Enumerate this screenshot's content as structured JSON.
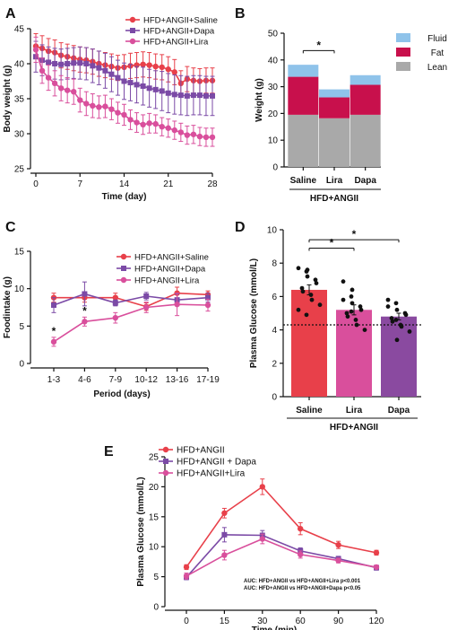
{
  "colors": {
    "saline": "#e8404a",
    "dapa": "#7b4aa6",
    "lira": "#d94f9c",
    "fluid": "#8fc3ea",
    "fat": "#c8104c",
    "lean": "#a9a9a9",
    "plasma_saline": "#e8404a",
    "plasma_lira": "#d94f9c",
    "plasma_dapa": "#8a4aa0"
  },
  "chart_data": [
    {
      "panel": "A",
      "type": "line",
      "xlabel": "Time (day)",
      "ylabel": "Body weight (g)",
      "xlim": [
        0,
        28
      ],
      "ylim": [
        25,
        45
      ],
      "xticks": [
        "0",
        "7",
        "14",
        "21",
        "28"
      ],
      "yticks": [
        "25",
        "30",
        "35",
        "40",
        "45"
      ],
      "legend": "top-right",
      "x": [
        0,
        1,
        2,
        3,
        4,
        5,
        6,
        7,
        8,
        9,
        10,
        11,
        12,
        13,
        14,
        15,
        16,
        17,
        18,
        19,
        20,
        21,
        22,
        23,
        24,
        25,
        26,
        27,
        28
      ],
      "series": [
        {
          "name": "HFD+ANGII+Saline",
          "color_key": "saline",
          "values": [
            42.5,
            42.2,
            41.8,
            41.6,
            41.2,
            41.0,
            40.8,
            40.6,
            40.5,
            40.3,
            40.0,
            39.8,
            39.6,
            39.4,
            39.5,
            39.7,
            39.8,
            39.9,
            39.8,
            39.6,
            39.5,
            39.2,
            38.8,
            37.2,
            37.8,
            37.6,
            37.5,
            37.6,
            37.6
          ],
          "errors": [
            1.8,
            1.8,
            1.8,
            1.8,
            1.8,
            1.8,
            1.8,
            1.8,
            1.8,
            1.8,
            1.8,
            1.8,
            1.8,
            1.8,
            1.8,
            1.8,
            1.8,
            1.8,
            1.8,
            1.8,
            1.8,
            1.8,
            1.8,
            1.8,
            1.8,
            1.8,
            1.8,
            1.8,
            1.8
          ]
        },
        {
          "name": "HFD+ANGII+Dapa",
          "color_key": "dapa",
          "values": [
            41.0,
            40.5,
            40.2,
            40.0,
            39.9,
            40.0,
            40.1,
            40.1,
            40.0,
            39.7,
            39.4,
            39.0,
            38.5,
            38.0,
            37.5,
            37.3,
            37.0,
            36.8,
            36.5,
            36.3,
            36.1,
            35.8,
            35.6,
            35.5,
            35.4,
            35.5,
            35.5,
            35.4,
            35.4
          ],
          "errors": [
            2.2,
            2.2,
            2.2,
            2.2,
            2.2,
            2.2,
            2.2,
            2.3,
            2.3,
            2.4,
            2.4,
            2.5,
            2.5,
            2.5,
            2.6,
            2.6,
            2.6,
            2.7,
            2.7,
            2.7,
            2.8,
            2.8,
            2.8,
            2.8,
            2.8,
            2.8,
            2.8,
            2.8,
            2.8
          ]
        },
        {
          "name": "HFD+ANGII+Lira",
          "color_key": "lira",
          "values": [
            42.0,
            39.0,
            38.0,
            37.2,
            36.5,
            36.2,
            36.0,
            34.8,
            34.3,
            34.0,
            33.8,
            33.9,
            33.5,
            33.0,
            32.7,
            32.0,
            31.6,
            31.3,
            31.5,
            31.4,
            31.0,
            30.8,
            30.5,
            30.2,
            29.8,
            29.9,
            29.6,
            29.5,
            29.5
          ],
          "errors": [
            1.8,
            1.8,
            1.8,
            1.8,
            1.8,
            1.8,
            1.8,
            1.7,
            1.7,
            1.7,
            1.6,
            1.6,
            1.5,
            1.5,
            1.5,
            1.4,
            1.4,
            1.4,
            1.4,
            1.3,
            1.3,
            1.3,
            1.3,
            1.3,
            1.3,
            1.3,
            1.3,
            1.3,
            1.3
          ]
        }
      ]
    },
    {
      "panel": "B",
      "type": "bar",
      "stacked": true,
      "categories": [
        "Saline",
        "Lira",
        "Dapa"
      ],
      "group_label": "HFD+ANGII",
      "ylabel": "Weight (g)",
      "ylim": [
        0,
        50
      ],
      "yticks": [
        "0",
        "10",
        "20",
        "30",
        "40",
        "50"
      ],
      "legend": "right",
      "series": [
        {
          "name": "Lean",
          "color_key": "lean",
          "values": [
            19.5,
            18.2,
            19.5
          ]
        },
        {
          "name": "Fat",
          "color_key": "fat",
          "values": [
            14.2,
            7.8,
            11.2
          ]
        },
        {
          "name": "Fluid",
          "color_key": "fluid",
          "values": [
            4.5,
            3.0,
            3.6
          ]
        }
      ],
      "annotations": [
        {
          "text": "*",
          "between": [
            "Saline",
            "Lira"
          ]
        }
      ]
    },
    {
      "panel": "C",
      "type": "line",
      "xlabel": "Period (days)",
      "ylabel": "Foodintake (g)",
      "categories": [
        "1-3",
        "4-6",
        "7-9",
        "10-12",
        "13-16",
        "17-19"
      ],
      "ylim": [
        0,
        15
      ],
      "yticks": [
        "0",
        "5",
        "10",
        "15"
      ],
      "legend": "top-right",
      "series": [
        {
          "name": "HFD+ANGII+Saline",
          "color_key": "saline",
          "values": [
            8.8,
            8.8,
            8.8,
            7.6,
            9.4,
            9.2
          ],
          "errors": [
            0.6,
            0.6,
            0.6,
            0.5,
            0.8,
            0.5
          ]
        },
        {
          "name": "HFD+ANGII+Dapa",
          "color_key": "dapa",
          "values": [
            7.8,
            9.3,
            8.1,
            9.0,
            8.5,
            8.8
          ],
          "errors": [
            1.0,
            1.6,
            0.4,
            0.5,
            0.8,
            0.6
          ]
        },
        {
          "name": "HFD+ANGII+Lira",
          "color_key": "lira",
          "values": [
            2.9,
            5.6,
            6.1,
            7.5,
            7.9,
            7.8
          ],
          "errors": [
            0.6,
            0.6,
            0.7,
            0.7,
            1.5,
            0.8
          ]
        }
      ],
      "annotations": [
        {
          "text": "*",
          "category": "1-3"
        },
        {
          "text": "*",
          "category": "4-6"
        }
      ]
    },
    {
      "panel": "D",
      "type": "bar",
      "categories": [
        "Saline",
        "Lira",
        "Dapa"
      ],
      "group_label": "HFD+ANGII",
      "ylabel": "Plasma Glucose (mmol/L)",
      "ylim": [
        0,
        10
      ],
      "yticks": [
        "0",
        "2",
        "4",
        "6",
        "8",
        "10"
      ],
      "reference_line": 4.3,
      "series": [
        {
          "name": "",
          "values": [
            6.4,
            5.2,
            4.8
          ],
          "errors": [
            0.3,
            0.3,
            0.2
          ],
          "color_keys": [
            "plasma_saline",
            "plasma_lira",
            "plasma_dapa"
          ]
        }
      ],
      "points": [
        [
          7.7,
          7.5,
          7.2,
          7.0,
          6.8,
          6.5,
          6.3,
          6.1,
          5.8,
          5.5,
          5.2,
          4.9,
          7.6
        ],
        [
          6.9,
          6.0,
          5.6,
          5.4,
          5.2,
          5.0,
          4.8,
          4.6,
          4.3,
          4.0,
          5.8,
          5.1,
          6.4
        ],
        [
          5.8,
          5.6,
          5.2,
          5.0,
          4.9,
          4.7,
          4.5,
          4.3,
          4.2,
          3.9,
          5.4,
          4.6,
          3.4
        ]
      ],
      "annotations": [
        {
          "text": "*",
          "between": [
            "Saline",
            "Lira"
          ]
        },
        {
          "text": "*",
          "between": [
            "Saline",
            "Dapa"
          ]
        }
      ]
    },
    {
      "panel": "E",
      "type": "line",
      "xlabel": "Time (min)",
      "ylabel": "Plasma Glucose (mmol/L)",
      "x": [
        0,
        15,
        30,
        60,
        90,
        120
      ],
      "ylim": [
        0,
        25
      ],
      "yticks": [
        "0",
        "5",
        "10",
        "15",
        "20",
        "25"
      ],
      "legend": "top-left",
      "series": [
        {
          "name": "HFD+ANGII",
          "color_key": "saline",
          "values": [
            6.6,
            15.6,
            20.0,
            13.0,
            10.3,
            9.0
          ],
          "errors": [
            0.4,
            0.8,
            1.3,
            1.0,
            0.6,
            0.4
          ]
        },
        {
          "name": "HFD+ANGII + Dapa",
          "color_key": "dapa",
          "values": [
            4.9,
            12.0,
            11.9,
            9.3,
            8.0,
            6.5
          ],
          "errors": [
            0.4,
            1.2,
            0.8,
            0.5,
            0.4,
            0.4
          ]
        },
        {
          "name": "HFD+ANGII+Lira",
          "color_key": "lira",
          "values": [
            5.1,
            8.6,
            11.3,
            8.7,
            7.7,
            6.6
          ],
          "errors": [
            0.5,
            0.8,
            0.8,
            0.6,
            0.4,
            0.3
          ]
        }
      ],
      "notes": [
        "AUC: HFD+ANGII vs HFD+ANGII+Lira p<0.001",
        "AUC: HFD+ANGII vs HFD+ANGII+Dapa p<0.05"
      ]
    }
  ]
}
